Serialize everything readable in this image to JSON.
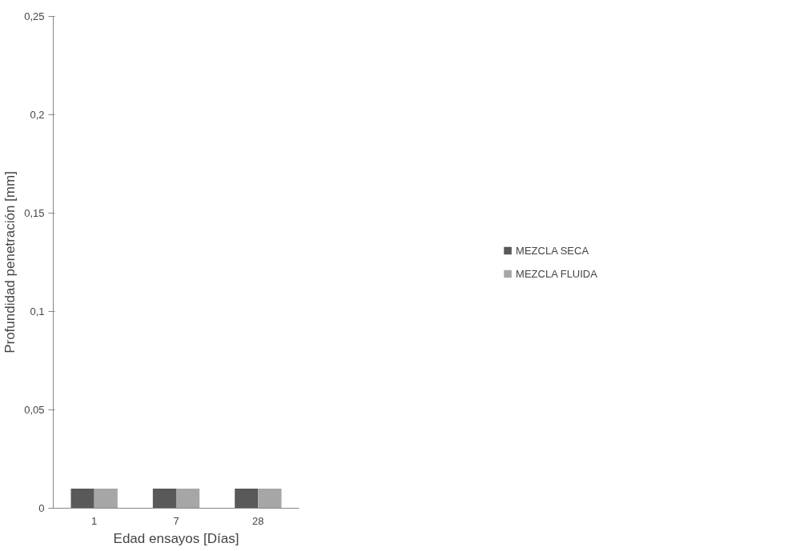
{
  "chart_data": {
    "type": "bar",
    "xlabel": "Edad ensayos [Días]",
    "ylabel": "Profundidad penetración [mm]",
    "categories": [
      "1",
      "7",
      "28"
    ],
    "series": [
      {
        "name": "MEZCLA SECA",
        "color": "#595959",
        "values": [
          0.01,
          0.01,
          0.01
        ]
      },
      {
        "name": "MEZCLA FLUIDA",
        "color": "#a6a6a6",
        "values": [
          0.01,
          0.01,
          0.01
        ]
      }
    ],
    "ylim": [
      0,
      0.25
    ],
    "yticks": [
      0,
      {
        "value": 0.05,
        "label": "0,05"
      },
      {
        "value": 0.1,
        "label": "0,1"
      },
      {
        "value": 0.15,
        "label": "0,15"
      },
      {
        "value": 0.2,
        "label": "0,2"
      },
      {
        "value": 0.25,
        "label": "0,25"
      }
    ],
    "grid": false,
    "legend": "right"
  }
}
